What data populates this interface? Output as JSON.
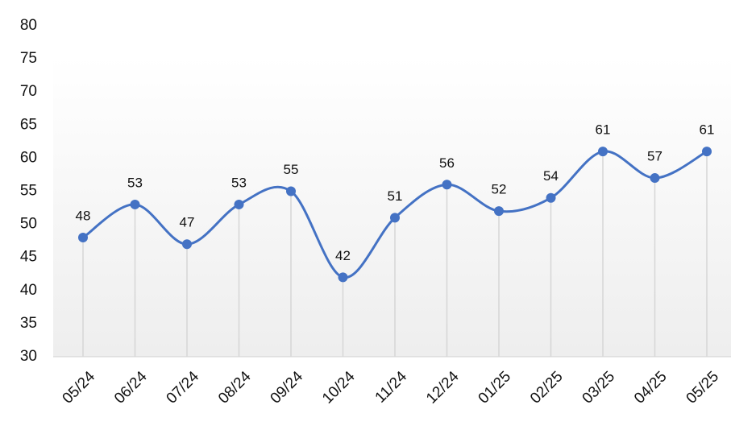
{
  "chart_data": {
    "type": "line",
    "categories": [
      "05/24",
      "06/24",
      "07/24",
      "08/24",
      "09/24",
      "10/24",
      "11/24",
      "12/24",
      "01/25",
      "02/25",
      "03/25",
      "04/25",
      "05/25"
    ],
    "series": [
      {
        "values": [
          48,
          53,
          47,
          53,
          55,
          42,
          51,
          56,
          52,
          54,
          61,
          57,
          61
        ],
        "color": "#4472c4"
      }
    ],
    "ylim": [
      30,
      80
    ],
    "yticks": [
      30,
      35,
      40,
      45,
      50,
      55,
      60,
      65,
      70,
      75,
      80
    ],
    "grid": false,
    "smooth": true,
    "drop_lines": true,
    "data_labels": true
  }
}
